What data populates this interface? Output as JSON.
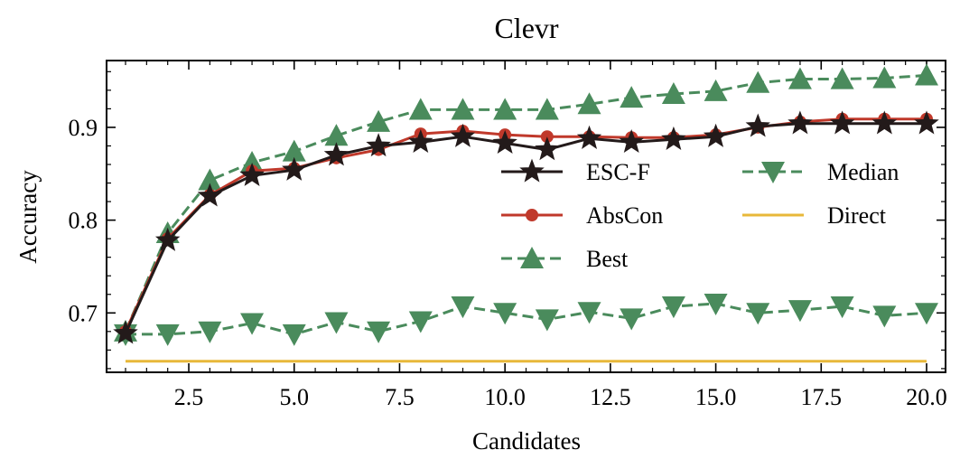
{
  "chart_data": {
    "type": "line",
    "title": "Clevr",
    "xlabel": "Candidates",
    "ylabel": "Accuracy",
    "xlim": [
      0.55,
      20.45
    ],
    "ylim": [
      0.636,
      0.972
    ],
    "xticks": [
      2.5,
      5.0,
      7.5,
      10.0,
      12.5,
      15.0,
      17.5,
      20.0
    ],
    "xtick_labels": [
      "2.5",
      "5.0",
      "7.5",
      "10.0",
      "12.5",
      "15.0",
      "17.5",
      "20.0"
    ],
    "yticks": [
      0.7,
      0.8,
      0.9
    ],
    "ytick_labels": [
      "0.7",
      "0.8",
      "0.9"
    ],
    "grid": false,
    "legend_position": "center-right, two columns",
    "x": [
      1,
      2,
      3,
      4,
      5,
      6,
      7,
      8,
      9,
      10,
      11,
      12,
      13,
      14,
      15,
      16,
      17,
      18,
      19,
      20
    ],
    "series": [
      {
        "name": "ESC-F",
        "color": "#231a1a",
        "marker": "star",
        "dash": "solid",
        "values": [
          0.678,
          0.778,
          0.826,
          0.848,
          0.854,
          0.87,
          0.88,
          0.884,
          0.89,
          0.883,
          0.876,
          0.888,
          0.884,
          0.887,
          0.89,
          0.901,
          0.904,
          0.904,
          0.904,
          0.904
        ]
      },
      {
        "name": "AbsCon",
        "color": "#c0392b",
        "marker": "circle",
        "dash": "solid",
        "values": [
          0.68,
          0.78,
          0.827,
          0.853,
          0.856,
          0.867,
          0.876,
          0.893,
          0.896,
          0.892,
          0.89,
          0.89,
          0.889,
          0.889,
          0.892,
          0.9,
          0.906,
          0.909,
          0.909,
          0.909
        ]
      },
      {
        "name": "Best",
        "color": "#4a8b5c",
        "marker": "triangle-up",
        "dash": "dashed",
        "values": [
          0.68,
          0.786,
          0.843,
          0.862,
          0.874,
          0.891,
          0.906,
          0.919,
          0.919,
          0.919,
          0.919,
          0.925,
          0.932,
          0.936,
          0.939,
          0.948,
          0.952,
          0.952,
          0.953,
          0.956
        ]
      },
      {
        "name": "Median",
        "color": "#4a8b5c",
        "marker": "triangle-down",
        "dash": "dashed",
        "values": [
          0.677,
          0.677,
          0.68,
          0.689,
          0.677,
          0.69,
          0.68,
          0.691,
          0.707,
          0.7,
          0.693,
          0.701,
          0.694,
          0.707,
          0.71,
          0.7,
          0.703,
          0.707,
          0.697,
          0.7
        ]
      },
      {
        "name": "Direct",
        "color": "#e8b83a",
        "marker": "none",
        "dash": "solid",
        "values": [
          0.648,
          0.648,
          0.648,
          0.648,
          0.648,
          0.648,
          0.648,
          0.648,
          0.648,
          0.648,
          0.648,
          0.648,
          0.648,
          0.648,
          0.648,
          0.648,
          0.648,
          0.648,
          0.648,
          0.648
        ]
      }
    ]
  }
}
